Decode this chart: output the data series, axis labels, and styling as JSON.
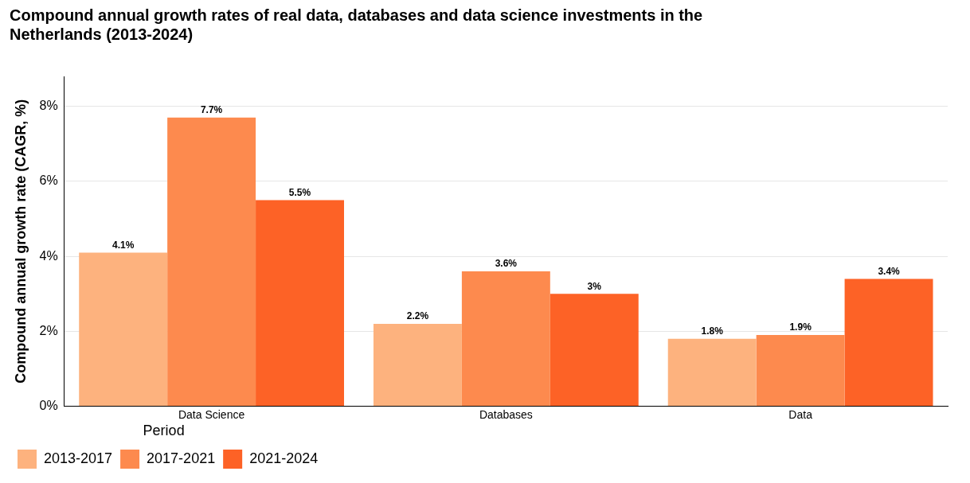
{
  "chart_data": {
    "type": "bar",
    "title": [
      "Compound annual growth rates of real data, databases and data science investments in the",
      "Netherlands (2013-2024)"
    ],
    "ylabel": "Compound annual growth rate (CAGR, %)",
    "legend_title": "Period",
    "categories": [
      "Data Science",
      "Databases",
      "Data"
    ],
    "series": [
      {
        "name": "2013-2017",
        "color": "#fdb27e",
        "values": [
          4.1,
          2.2,
          1.8
        ],
        "value_labels": [
          "4.1%",
          "2.2%",
          "1.8%"
        ]
      },
      {
        "name": "2017-2021",
        "color": "#fd8a4e",
        "values": [
          7.7,
          3.6,
          1.9
        ],
        "value_labels": [
          "7.7%",
          "3.6%",
          "1.9%"
        ]
      },
      {
        "name": "2021-2024",
        "color": "#fd6226",
        "values": [
          5.5,
          3.0,
          3.4
        ],
        "value_labels": [
          "5.5%",
          "3%",
          "3.4%"
        ]
      }
    ],
    "ylim": [
      0,
      8.8
    ],
    "yticks": [
      {
        "value": 0,
        "label": "0%"
      },
      {
        "value": 2,
        "label": "2%"
      },
      {
        "value": 4,
        "label": "4%"
      },
      {
        "value": 6,
        "label": "6%"
      },
      {
        "value": 8,
        "label": "8%"
      }
    ],
    "grid": "y",
    "legend": "bottom left"
  }
}
